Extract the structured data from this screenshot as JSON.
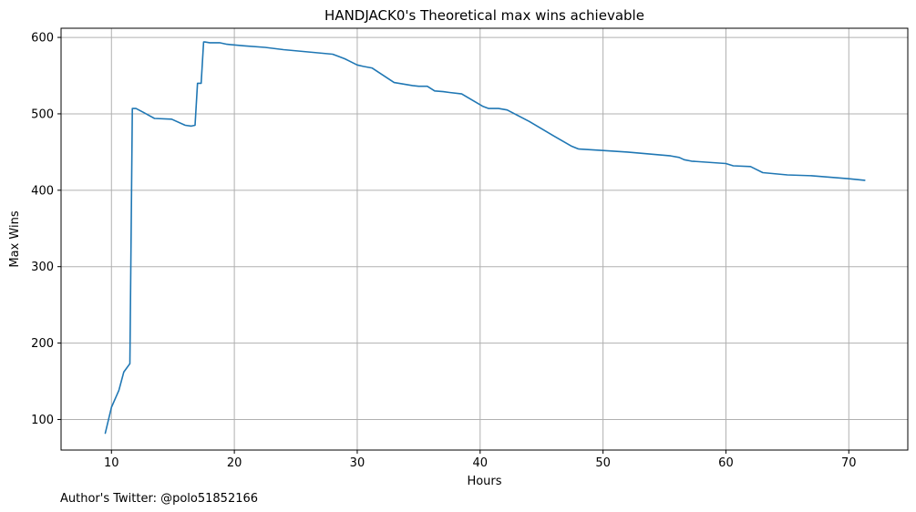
{
  "chart_data": {
    "type": "line",
    "title": "HANDJACK0's Theoretical max wins achievable",
    "xlabel": "Hours",
    "ylabel": "Max Wins",
    "xlim": [
      5.9,
      74.8
    ],
    "ylim": [
      60,
      612
    ],
    "xticks": [
      10,
      20,
      30,
      40,
      50,
      60,
      70
    ],
    "yticks": [
      100,
      200,
      300,
      400,
      500,
      600
    ],
    "grid": true,
    "series": [
      {
        "color": "#1f77b4",
        "x": [
          9.5,
          10.0,
          10.6,
          11.0,
          11.5,
          11.7,
          12.0,
          12.6,
          13.5,
          14.9,
          16.0,
          16.5,
          16.8,
          17.0,
          17.2,
          17.3,
          17.5,
          17.6,
          18.0,
          18.8,
          19.4,
          20.8,
          22.5,
          24.0,
          26.0,
          28.0,
          28.5,
          29.0,
          30.0,
          30.5,
          31.2,
          33.0,
          34.5,
          35.0,
          35.7,
          36.3,
          37.0,
          37.5,
          38.5,
          40.2,
          40.7,
          41.5,
          42.2,
          44.0,
          46.0,
          47.4,
          48.0,
          50.0,
          52.0,
          55.5,
          56.2,
          56.6,
          57.2,
          60.0,
          60.6,
          62.0,
          62.5,
          63.0,
          65.0,
          67.0,
          70.0,
          71.3
        ],
        "y": [
          82,
          116,
          138,
          162,
          173,
          507,
          507,
          502,
          494,
          493,
          485,
          484,
          485,
          540,
          540,
          540,
          594,
          594,
          593,
          593,
          591,
          589,
          587,
          584,
          581,
          578,
          575,
          572,
          564,
          562,
          560,
          541,
          537,
          536,
          536,
          530,
          529,
          528,
          526,
          510,
          507,
          507,
          505,
          490,
          471,
          458,
          454,
          452,
          450,
          445,
          443,
          440,
          438,
          435,
          432,
          431,
          427,
          423,
          420,
          419,
          415,
          413
        ]
      }
    ]
  },
  "footer": {
    "credit": "Author's Twitter: @polo51852166"
  }
}
